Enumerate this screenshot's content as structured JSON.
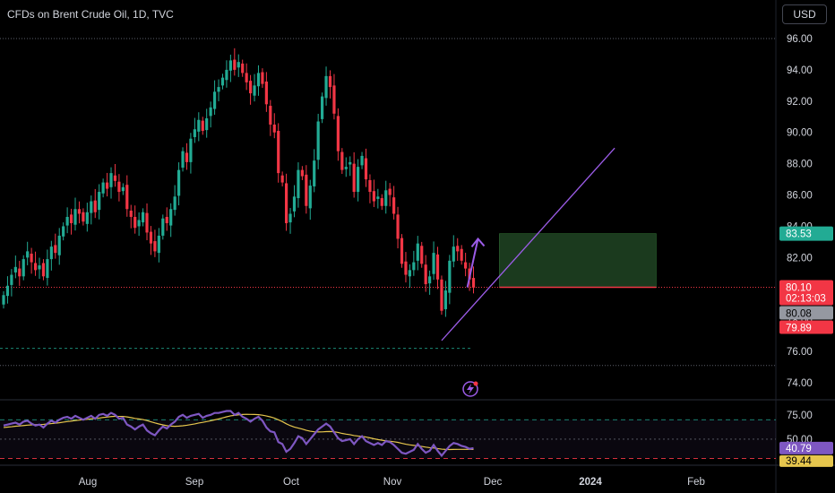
{
  "header": {
    "title": "CFDs on Brent Crude Oil, 1D, TVC",
    "currency_button": "USD"
  },
  "colors": {
    "background": "#000000",
    "up": "#22ab94",
    "down": "#f23645",
    "rsi_line": "#7e57c2",
    "rsi_ma": "#e6c64d",
    "drawing": "#9c5ce8",
    "target_zone": "#1b3a1e"
  },
  "icons": [
    "lightning-icon"
  ],
  "chart_data": {
    "type": "candlestick",
    "symbol": "CFDs on Brent Crude Oil",
    "interval": "1D",
    "source": "TVC",
    "price_axis": {
      "ticks": [
        74,
        76,
        78,
        80,
        82,
        84,
        86,
        88,
        90,
        92,
        94,
        96
      ],
      "tick_labels": [
        "74.00",
        "76.00",
        "78.00",
        "80.00",
        "82.00",
        "84.00",
        "86.00",
        "88.00",
        "90.00",
        "92.00",
        "94.00",
        "96.00"
      ],
      "range": [
        73.2,
        97.5
      ]
    },
    "time_axis": {
      "labels": [
        "Aug",
        "Sep",
        "Oct",
        "Nov",
        "Dec",
        "2024",
        "Feb"
      ]
    },
    "price_labels": {
      "target": "83.53",
      "last": "80.10",
      "countdown": "02:13:03",
      "close": "80.08",
      "low": "79.89"
    },
    "close_series": [
      79.6,
      80.2,
      80.9,
      81.4,
      80.8,
      81.9,
      82.4,
      81.7,
      81.2,
      81.5,
      80.8,
      81.9,
      82.7,
      82.3,
      83.4,
      84.0,
      84.6,
      84.2,
      85.1,
      84.8,
      84.3,
      84.9,
      85.6,
      84.9,
      86.2,
      86.8,
      86.4,
      87.4,
      86.9,
      86.2,
      86.5,
      85.1,
      84.6,
      83.9,
      84.4,
      84.9,
      83.6,
      82.9,
      82.4,
      83.4,
      84.5,
      84.2,
      85.1,
      85.9,
      87.6,
      88.8,
      88.1,
      89.6,
      90.2,
      90.8,
      90.1,
      90.9,
      91.6,
      92.6,
      92.9,
      93.5,
      94.0,
      94.6,
      94.0,
      94.5,
      93.8,
      93.2,
      92.5,
      93.0,
      93.8,
      93.1,
      91.8,
      90.5,
      90.0,
      87.4,
      86.8,
      84.2,
      84.8,
      85.9,
      87.6,
      87.2,
      85.3,
      86.6,
      88.2,
      90.7,
      92.3,
      93.6,
      92.9,
      91.2,
      88.8,
      87.6,
      87.8,
      88.1,
      86.2,
      87.8,
      88.5,
      87.0,
      86.2,
      85.6,
      85.9,
      85.3,
      86.3,
      86.0,
      84.8,
      83.2,
      81.6,
      80.9,
      81.2,
      81.7,
      82.9,
      81.6,
      80.3,
      80.8,
      82.3,
      80.6,
      78.6,
      79.9,
      81.8,
      82.7,
      82.4,
      81.8,
      81.3,
      80.6,
      80.08
    ],
    "rsi": {
      "name": "RSI",
      "axis_labels": [
        "75.00",
        "50.00"
      ],
      "levels": [
        70,
        50,
        30
      ],
      "range": [
        25,
        85
      ],
      "value": "40.79",
      "ma_value": "39.44",
      "series": [
        64,
        65,
        66,
        67,
        65,
        68,
        69,
        66,
        64,
        65,
        62,
        66,
        69,
        67,
        70,
        72,
        73,
        71,
        74,
        72,
        70,
        72,
        74,
        71,
        75,
        76,
        74,
        77,
        75,
        71,
        72,
        65,
        63,
        60,
        63,
        65,
        59,
        56,
        54,
        59,
        63,
        61,
        65,
        68,
        73,
        75,
        72,
        74,
        75,
        76,
        72,
        74,
        75,
        77,
        77,
        78,
        79,
        79,
        75,
        77,
        73,
        71,
        68,
        71,
        73,
        69,
        62,
        58,
        57,
        47,
        45,
        37,
        40,
        46,
        53,
        51,
        45,
        50,
        55,
        60,
        63,
        66,
        63,
        57,
        51,
        48,
        49,
        50,
        45,
        50,
        53,
        48,
        46,
        44,
        46,
        44,
        48,
        47,
        44,
        40,
        36,
        35,
        37,
        39,
        45,
        40,
        36,
        38,
        44,
        38,
        33,
        38,
        43,
        46,
        45,
        43,
        42,
        40,
        40.79
      ],
      "ma_series": [
        62,
        62.4,
        62.8,
        63.3,
        63.6,
        64,
        64.4,
        64.7,
        64.9,
        65.1,
        65.2,
        65.6,
        66,
        66.4,
        66.9,
        67.5,
        68.1,
        68.6,
        69.2,
        69.6,
        70,
        70.4,
        70.9,
        71.2,
        71.7,
        72.3,
        72.7,
        73.2,
        73.5,
        73.4,
        73.4,
        72.9,
        72.2,
        71.3,
        70.8,
        70.2,
        69.1,
        67.9,
        66.7,
        65.6,
        64.7,
        63.9,
        63.4,
        63.2,
        63.4,
        63.8,
        64.3,
        65,
        65.7,
        66.6,
        67.3,
        68.1,
        68.9,
        69.9,
        70.8,
        71.9,
        73,
        74,
        74.5,
        75.1,
        75.4,
        75.6,
        75.5,
        75.4,
        75.2,
        74.7,
        73.9,
        72.9,
        71.7,
        69.9,
        68.1,
        65.8,
        63.9,
        62.4,
        61.4,
        60.4,
        59.1,
        58.2,
        57.6,
        57.4,
        57.5,
        57.8,
        57.9,
        57.6,
        56.9,
        55.9,
        55.2,
        54.6,
        53.7,
        53.2,
        52.8,
        52.2,
        51.3,
        50.4,
        49.6,
        48.9,
        48.3,
        47.9,
        47.3,
        46.7,
        45.7,
        44.8,
        44.1,
        43.6,
        43.2,
        42.5,
        41.8,
        41.2,
        40.9,
        40.3,
        39.7,
        39.4,
        39.3,
        39.4,
        39.5,
        39.5,
        39.5,
        39.5,
        39.44
      ]
    },
    "annotations": {
      "trendline": {
        "from": [
          110,
          76.7
        ],
        "to": [
          153,
          89
        ]
      },
      "projection_arrow": {
        "from": [
          116,
          80.1
        ],
        "to": [
          118,
          83.2
        ]
      },
      "target_zone": {
        "from_index": 120,
        "to_index": 136,
        "top": 83.53,
        "bottom": 80.1
      },
      "support_line": 76.2,
      "lower_line": 75.1
    }
  }
}
